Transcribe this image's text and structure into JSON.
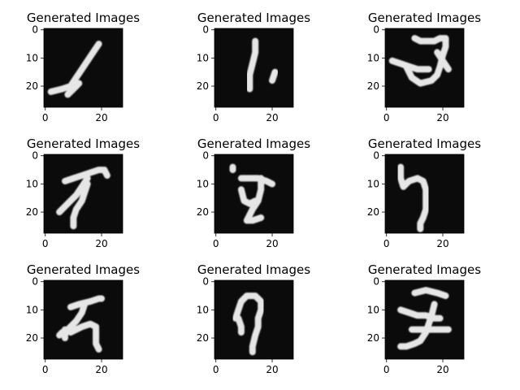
{
  "chart_data": {
    "type": "image-grid",
    "grid": {
      "rows": 3,
      "cols": 3
    },
    "panel_title": "Generated Images",
    "image_size": [
      28,
      28
    ],
    "x_ticks": [
      0,
      20
    ],
    "y_ticks": [
      0,
      10,
      20
    ],
    "colormap": "gray",
    "background": "#ffffff",
    "panels": [
      {
        "title": "Generated Images",
        "strokes": [
          [
            [
              2,
              22
            ],
            [
              6,
              21
            ],
            [
              9,
              20
            ],
            [
              11,
              17
            ],
            [
              13,
              14
            ],
            [
              15,
              11
            ],
            [
              17,
              8
            ],
            [
              19,
              5
            ]
          ],
          [
            [
              8,
              23
            ],
            [
              10,
              21
            ],
            [
              12,
              19
            ]
          ]
        ]
      },
      {
        "title": "Generated Images",
        "strokes": [
          [
            [
              14,
              4
            ],
            [
              14,
              8
            ],
            [
              13,
              12
            ],
            [
              12,
              16
            ],
            [
              12,
              21
            ]
          ],
          [
            [
              21,
              15
            ],
            [
              20,
              18
            ]
          ]
        ]
      },
      {
        "title": "Generated Images",
        "strokes": [
          [
            [
              10,
              3
            ],
            [
              12,
              4
            ],
            [
              14,
              4
            ],
            [
              17,
              4
            ],
            [
              19,
              3
            ],
            [
              21,
              3
            ],
            [
              21,
              6
            ],
            [
              20,
              9
            ],
            [
              19,
              13
            ],
            [
              18,
              16
            ],
            [
              16,
              18
            ],
            [
              12,
              19
            ],
            [
              9,
              17
            ],
            [
              7,
              13
            ]
          ],
          [
            [
              2,
              11
            ],
            [
              5,
              12
            ],
            [
              8,
              13
            ],
            [
              11,
              14
            ],
            [
              15,
              14
            ]
          ],
          [
            [
              18,
              8
            ],
            [
              20,
              11
            ],
            [
              22,
              14
            ]
          ]
        ]
      },
      {
        "title": "Generated Images",
        "strokes": [
          [
            [
              7,
              9
            ],
            [
              10,
              8
            ],
            [
              13,
              7
            ],
            [
              16,
              6
            ],
            [
              19,
              5
            ],
            [
              21,
              5
            ],
            [
              22,
              7
            ]
          ],
          [
            [
              15,
              8
            ],
            [
              13,
              11
            ],
            [
              11,
              14
            ],
            [
              8,
              17
            ],
            [
              5,
              20
            ]
          ],
          [
            [
              15,
              10
            ],
            [
              14,
              13
            ],
            [
              13,
              16
            ],
            [
              11,
              19
            ],
            [
              10,
              22
            ],
            [
              10,
              25
            ]
          ]
        ]
      },
      {
        "title": "Generated Images",
        "strokes": [
          [
            [
              6,
              4
            ],
            [
              6,
              5
            ]
          ],
          [
            [
              9,
              8
            ],
            [
              12,
              8
            ],
            [
              15,
              8
            ],
            [
              18,
              9
            ],
            [
              20,
              10
            ]
          ],
          [
            [
              16,
              8
            ],
            [
              16,
              12
            ],
            [
              15,
              16
            ],
            [
              13,
              19
            ],
            [
              11,
              23
            ],
            [
              13,
              23
            ],
            [
              16,
              22
            ]
          ],
          [
            [
              9,
              12
            ],
            [
              10,
              16
            ],
            [
              12,
              17
            ],
            [
              14,
              16
            ]
          ]
        ]
      },
      {
        "title": "Generated Images",
        "strokes": [
          [
            [
              5,
              4
            ],
            [
              5,
              8
            ],
            [
              6,
              11
            ],
            [
              8,
              9
            ],
            [
              11,
              8
            ],
            [
              13,
              9
            ],
            [
              14,
              12
            ],
            [
              14,
              16
            ],
            [
              14,
              19
            ],
            [
              13,
              22
            ],
            [
              12,
              24
            ],
            [
              12,
              26
            ]
          ]
        ]
      },
      {
        "title": "Generated Images",
        "strokes": [
          [
            [
              9,
              9
            ],
            [
              12,
              8
            ],
            [
              16,
              7
            ],
            [
              19,
              6
            ],
            [
              20,
              6
            ]
          ],
          [
            [
              14,
              8
            ],
            [
              13,
              11
            ],
            [
              11,
              14
            ],
            [
              8,
              17
            ],
            [
              6,
              18
            ],
            [
              5,
              19
            ]
          ],
          [
            [
              9,
              18
            ],
            [
              13,
              16
            ],
            [
              16,
              15
            ],
            [
              18,
              16
            ],
            [
              18,
              19
            ],
            [
              18,
              22
            ],
            [
              19,
              24
            ]
          ],
          [
            [
              7,
              17
            ],
            [
              7,
              20
            ]
          ]
        ]
      },
      {
        "title": "Generated Images",
        "strokes": [
          [
            [
              7,
              13
            ],
            [
              8,
              10
            ],
            [
              9,
              7
            ],
            [
              11,
              5
            ],
            [
              14,
              5
            ],
            [
              16,
              7
            ],
            [
              16,
              10
            ],
            [
              15,
              13
            ],
            [
              15,
              16
            ],
            [
              14,
              19
            ],
            [
              13,
              23
            ],
            [
              13,
              25
            ]
          ],
          [
            [
              8,
              13
            ],
            [
              9,
              16
            ],
            [
              9,
              18
            ]
          ]
        ]
      },
      {
        "title": "Generated Images",
        "strokes": [
          [
            [
              10,
              4
            ],
            [
              14,
              3
            ],
            [
              18,
              4
            ],
            [
              21,
              5
            ]
          ],
          [
            [
              5,
              10
            ],
            [
              8,
              11
            ],
            [
              11,
              12
            ],
            [
              14,
              12
            ],
            [
              17,
              13
            ],
            [
              19,
              13
            ]
          ],
          [
            [
              17,
              8
            ],
            [
              16,
              12
            ],
            [
              15,
              15
            ],
            [
              14,
              18
            ],
            [
              12,
              21
            ],
            [
              10,
              22
            ],
            [
              7,
              23
            ],
            [
              5,
              23
            ]
          ],
          [
            [
              9,
              17
            ],
            [
              12,
              17
            ],
            [
              15,
              17
            ],
            [
              19,
              17
            ],
            [
              22,
              17
            ]
          ]
        ]
      }
    ]
  }
}
